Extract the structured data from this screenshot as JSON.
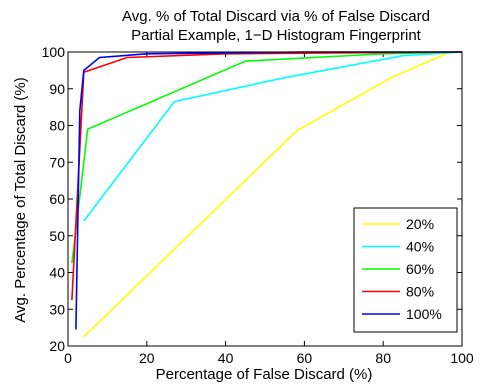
{
  "chart_data": {
    "type": "line",
    "title": "Avg. % of Total Discard via % of False Discard",
    "subtitle": "Partial Example, 1−D Histogram Fingerprint",
    "xlabel": "Percentage of False Discard (%)",
    "ylabel": "Avg. Percentage of Total Discard (%)",
    "xlim": [
      0,
      100
    ],
    "ylim": [
      20,
      100
    ],
    "xticks": [
      0,
      20,
      40,
      60,
      80,
      100
    ],
    "yticks": [
      20,
      30,
      40,
      50,
      60,
      70,
      80,
      90,
      100
    ],
    "grid": false,
    "legend_position": "bottom-right",
    "series": [
      {
        "name": "20%",
        "color": "#ffff00",
        "x": [
          4,
          58,
          82,
          97,
          100
        ],
        "y": [
          22.5,
          78.5,
          93,
          100,
          100
        ]
      },
      {
        "name": "40%",
        "color": "#00ffff",
        "x": [
          4,
          27,
          55,
          85,
          100
        ],
        "y": [
          54,
          86.5,
          93,
          99,
          100
        ]
      },
      {
        "name": "60%",
        "color": "#00ff00",
        "x": [
          1,
          5,
          45,
          80,
          100
        ],
        "y": [
          42.5,
          79,
          97.5,
          99.5,
          100
        ]
      },
      {
        "name": "80%",
        "color": "#ff0000",
        "x": [
          1,
          4,
          15,
          40,
          100
        ],
        "y": [
          32.5,
          94.5,
          98.5,
          99.5,
          100
        ]
      },
      {
        "name": "100%",
        "color": "#0000ff",
        "x": [
          2,
          3,
          4,
          8,
          20,
          60,
          100
        ],
        "y": [
          24.5,
          84,
          95,
          98.5,
          99.5,
          100,
          100
        ]
      }
    ]
  }
}
